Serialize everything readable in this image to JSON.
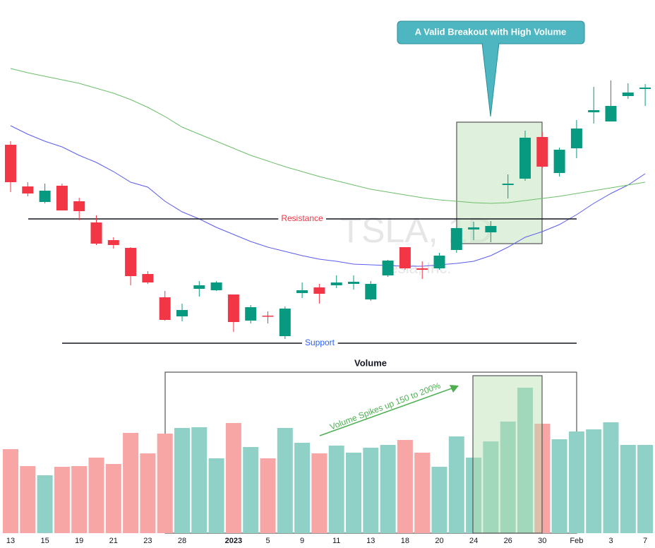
{
  "chart_data": {
    "type": "candlestick",
    "watermark": "TSLA, 1D",
    "watermark_subtitle": "Tesla, Inc.",
    "categories": [
      "13",
      null,
      "15",
      null,
      "19",
      null,
      "21",
      null,
      "23",
      null,
      "28",
      null,
      null,
      "2023",
      null,
      "5",
      null,
      "9",
      null,
      "11",
      null,
      "13",
      null,
      "18",
      null,
      "20",
      null,
      "24",
      null,
      "26",
      null,
      "30",
      null,
      "Feb",
      null,
      "3",
      null,
      "7"
    ],
    "open": [
      168.75,
      154,
      148.5,
      154.25,
      148.75,
      141.25,
      135,
      132.25,
      123,
      114.75,
      108,
      117.75,
      117.25,
      115.75,
      106.5,
      108.25,
      101,
      116.25,
      118.25,
      119,
      119.5,
      114,
      122.5,
      132.5,
      125,
      125,
      131.5,
      138.75,
      137.75,
      154.5,
      156.75,
      171.5,
      158.75,
      167.5,
      180.25,
      177,
      186,
      188.5
    ],
    "high": [
      170,
      155.5,
      155,
      155,
      150,
      143.75,
      136,
      132.5,
      124,
      117,
      112.5,
      120.5,
      120.5,
      115.75,
      112,
      109.75,
      111.5,
      120,
      119.5,
      122.5,
      122.5,
      120.5,
      128,
      132.5,
      127.5,
      130.5,
      139.75,
      141.5,
      141.75,
      158.25,
      173.75,
      173.25,
      167.75,
      177.5,
      189.25,
      191.5,
      190.5,
      190.25
    ],
    "low": [
      152,
      150.5,
      148,
      145.5,
      142,
      133.25,
      132,
      119,
      119.5,
      106.5,
      106.25,
      115,
      117,
      102.5,
      105.5,
      105.5,
      100,
      114.5,
      112.5,
      118,
      117.5,
      113.5,
      122,
      124.5,
      121.25,
      124.5,
      130.5,
      135,
      134.25,
      149.75,
      156,
      160.5,
      157.5,
      164,
      176.25,
      177,
      185,
      182.5
    ],
    "close": [
      155.5,
      151.5,
      152.5,
      145.5,
      145.25,
      133.75,
      133.25,
      122.25,
      120,
      106.75,
      110.25,
      119,
      120,
      106,
      111.25,
      108,
      110.75,
      117.25,
      116,
      120,
      120.25,
      119.5,
      127.75,
      125,
      124.5,
      129.5,
      139.25,
      139.5,
      140,
      155,
      171.25,
      161,
      167,
      174.5,
      181,
      182.5,
      187.25,
      189
    ],
    "ylim": [
      95,
      220
    ],
    "up_color": "#089981",
    "down_color": "#f23645",
    "moving_averages": [
      {
        "color": "#5c5cf0",
        "values": [
          175.5,
          172.5,
          170,
          168,
          165,
          162.5,
          159.25,
          155.5,
          153.75,
          148.75,
          145,
          142.5,
          139.5,
          137,
          134.5,
          132.5,
          131,
          129.5,
          128.25,
          127.5,
          126.5,
          126.25,
          126,
          125.75,
          125.75,
          126.25,
          126.75,
          127.5,
          129.5,
          132.5,
          136,
          138,
          140.5,
          144,
          148,
          151.5,
          154.5,
          158.5
        ]
      },
      {
        "color": "#6cbf6c",
        "values": [
          195.75,
          194.25,
          193,
          191.75,
          190.5,
          188.75,
          187,
          184.75,
          182,
          178.75,
          175,
          172.5,
          170,
          167.5,
          165,
          163,
          161,
          159.25,
          157.5,
          156,
          154.5,
          153,
          152,
          151,
          150,
          149.25,
          148.75,
          148.25,
          148,
          148.25,
          149,
          149.75,
          150.5,
          151.5,
          152.5,
          153.5,
          154.5,
          155.5
        ]
      }
    ],
    "levels": [
      {
        "label": "Resistance",
        "value": 142.5,
        "color": "#f23645"
      },
      {
        "label": "Support",
        "value": 98.5,
        "color": "#2962ff"
      }
    ],
    "callout": "A Valid Breakout with High Volume",
    "volume": {
      "title": "Volume",
      "note": "Volume Spikes up 150 to 200%",
      "values": [
        119,
        95,
        82,
        94,
        95,
        107,
        98,
        142,
        113,
        141,
        149,
        150,
        106,
        156,
        122,
        106,
        149,
        128,
        113,
        124,
        114,
        121,
        125,
        132,
        114,
        94,
        137,
        107,
        130,
        158,
        206,
        155,
        133,
        144,
        147,
        157,
        125,
        125
      ],
      "ylim": [
        0,
        260
      ],
      "up_color": "#8fd1c7",
      "down_color": "#f7a5a5"
    }
  }
}
